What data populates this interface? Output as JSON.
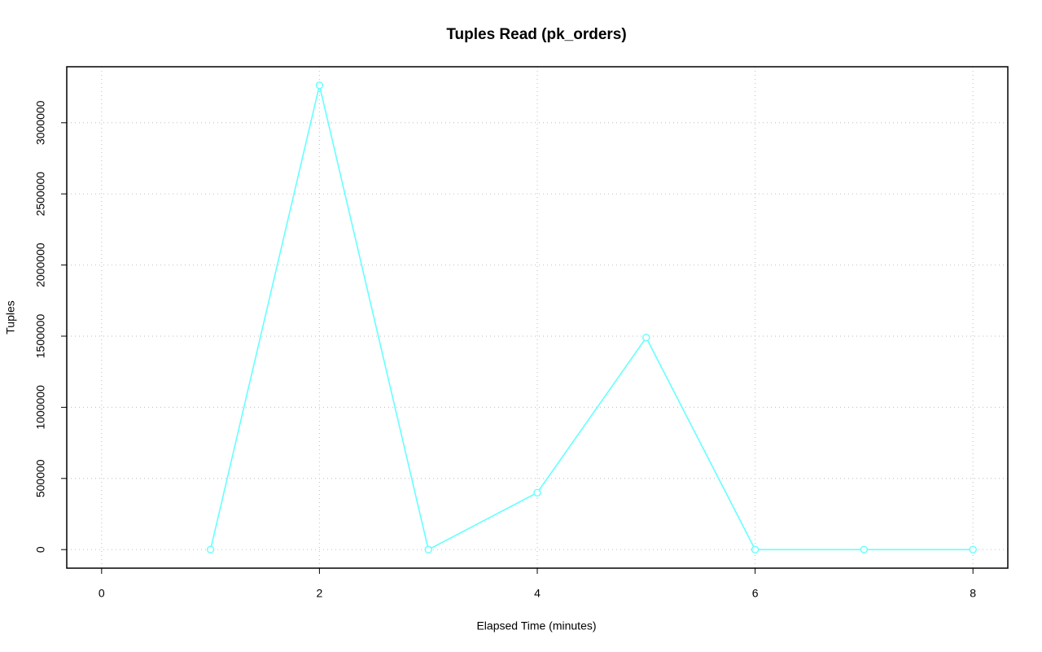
{
  "chart_data": {
    "type": "line",
    "title": "Tuples Read (pk_orders)",
    "xlabel": "Elapsed Time (minutes)",
    "ylabel": "Tuples",
    "x": [
      1,
      2,
      3,
      4,
      5,
      6,
      7,
      8
    ],
    "series": [
      {
        "name": "pk_orders",
        "color": "#66ffff",
        "values": [
          0,
          3263000,
          0,
          400000,
          1490000,
          0,
          0,
          0
        ]
      }
    ],
    "xlim": [
      -0.32,
      8.32
    ],
    "xticks": [
      0,
      2,
      4,
      6,
      8
    ],
    "ylim": [
      -130520,
      3393520
    ],
    "yticks": [
      0,
      500000,
      1000000,
      1500000,
      2000000,
      2500000,
      3000000
    ],
    "grid": true
  }
}
